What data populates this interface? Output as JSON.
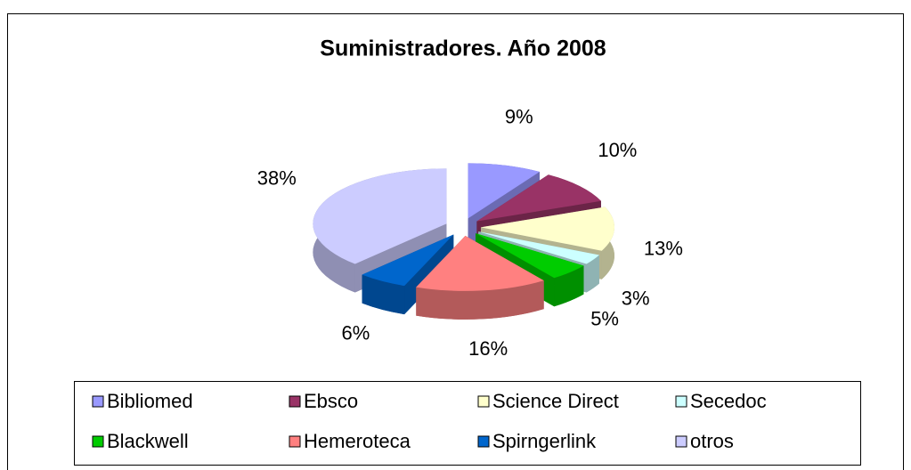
{
  "chart_data": {
    "type": "pie3d",
    "title": "Suministradores. Año 2008",
    "categories": [
      "Bibliomed",
      "Ebsco",
      "Science Direct",
      "Secedoc",
      "Blackwell",
      "Hemeroteca",
      "Spirngerlink",
      "otros"
    ],
    "values": [
      9,
      10,
      13,
      3,
      5,
      16,
      6,
      38
    ],
    "value_labels": [
      "9%",
      "10%",
      "13%",
      "3%",
      "5%",
      "16%",
      "6%",
      "38%"
    ],
    "colors": [
      "#9999ff",
      "#993366",
      "#ffffcc",
      "#ccffff",
      "#00cc00",
      "#ff8080",
      "#0066cc",
      "#ccccff"
    ],
    "legend": "bottom"
  }
}
